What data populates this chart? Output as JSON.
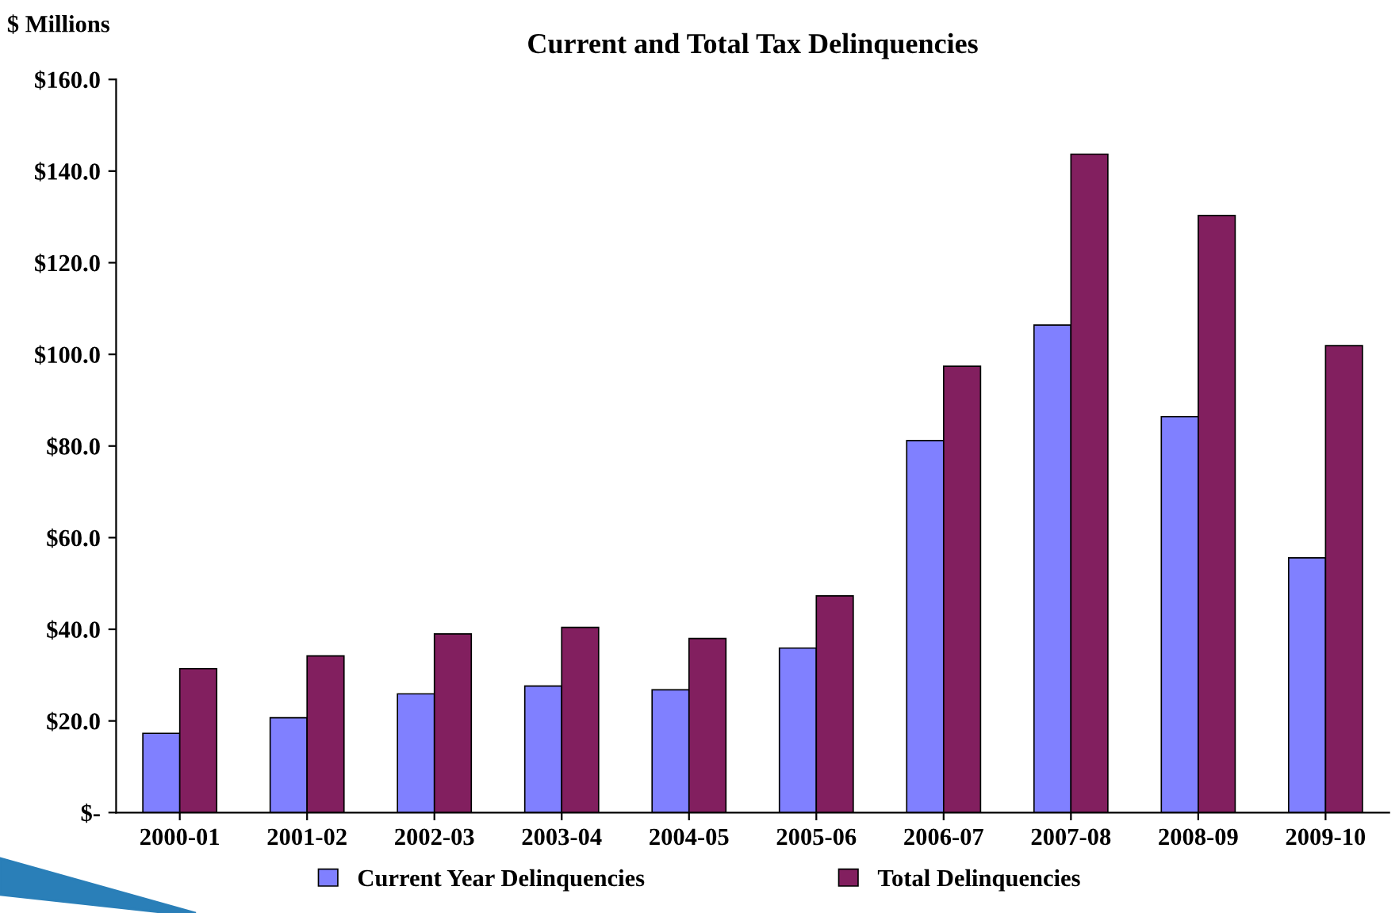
{
  "chart_data": {
    "type": "bar",
    "title": "Current and Total Tax Delinquencies",
    "ylabel": "$ Millions",
    "categories": [
      "2000-01",
      "2001-02",
      "2002-03",
      "2003-04",
      "2004-05",
      "2005-06",
      "2006-07",
      "2007-08",
      "2008-09",
      "2009-10"
    ],
    "series": [
      {
        "name": "Current Year Delinquencies",
        "color": "#8080ff",
        "values": [
          17.3,
          20.7,
          25.9,
          27.6,
          26.8,
          35.9,
          81.2,
          106.4,
          86.4,
          55.6
        ]
      },
      {
        "name": "Total Delinquencies",
        "color": "#821f5f",
        "values": [
          31.4,
          34.2,
          39.0,
          40.4,
          38.0,
          47.3,
          97.4,
          143.7,
          130.3,
          101.9
        ]
      }
    ],
    "ylim": [
      0,
      160
    ],
    "yticks": [
      {
        "value": 0,
        "label": "$-"
      },
      {
        "value": 20,
        "label": "$20.0"
      },
      {
        "value": 40,
        "label": "$40.0"
      },
      {
        "value": 60,
        "label": "$60.0"
      },
      {
        "value": 80,
        "label": "$80.0"
      },
      {
        "value": 100,
        "label": "$100.0"
      },
      {
        "value": 120,
        "label": "$120.0"
      },
      {
        "value": 140,
        "label": "$140.0"
      },
      {
        "value": 160,
        "label": "$160.0"
      }
    ],
    "grid": false,
    "legend": "bottom"
  }
}
